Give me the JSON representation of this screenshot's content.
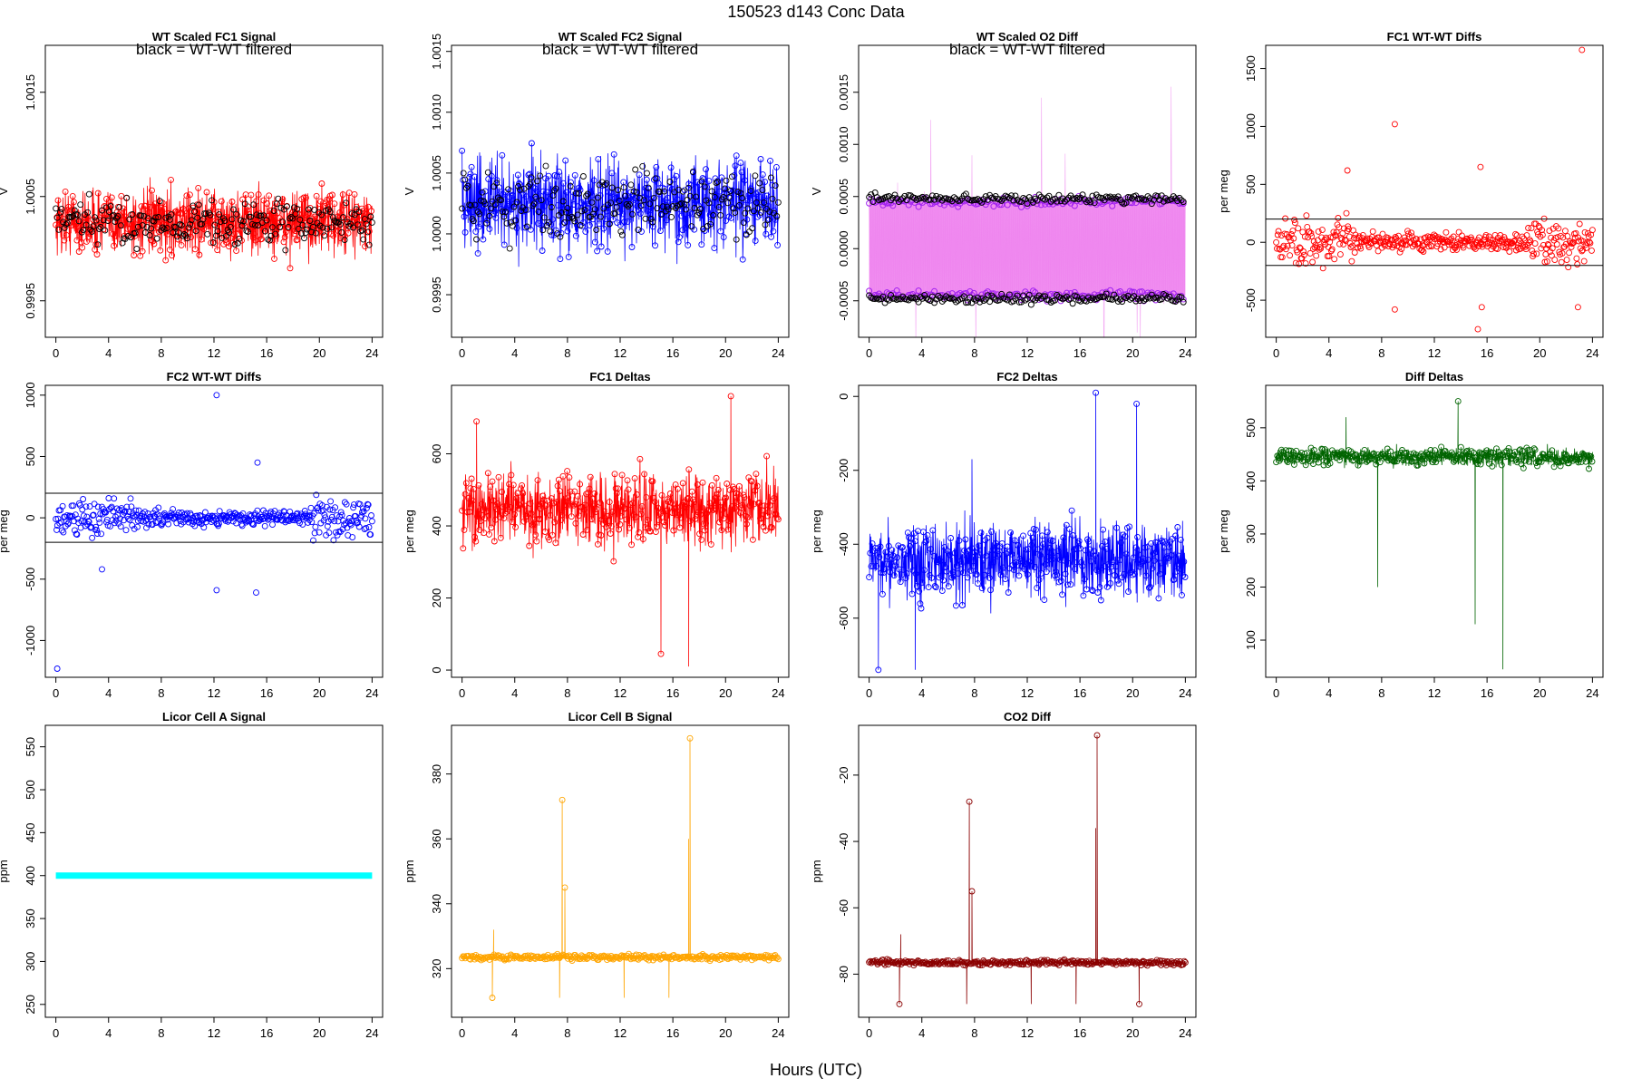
{
  "figure": {
    "title": "150523   d143   Conc Data",
    "xlabel": "Hours (UTC)"
  },
  "chart_data": [
    {
      "type": "line",
      "title": "WT Scaled FC1 Signal",
      "annotation": "black = WT-WT filtered",
      "ylabel": "V",
      "xlim": [
        -0.8,
        24.8
      ],
      "ylim": [
        0.99915,
        1.00195
      ],
      "xticks": [
        0,
        4,
        8,
        12,
        16,
        20,
        24
      ],
      "xtick_labels": [
        "0",
        "4",
        "8",
        "12",
        "16",
        "20",
        "24"
      ],
      "yticks": [
        0.9995,
        1.0005,
        1.0015
      ],
      "ytick_labels": [
        "0.9995",
        "1.0005",
        "1.0015"
      ],
      "series": [
        {
          "color": "#ff0000",
          "kind": "line-points",
          "center": 1.00025,
          "noise": 0.00022
        },
        {
          "color": "#000000",
          "kind": "points",
          "center": 1.00025,
          "noise": 0.00015
        }
      ]
    },
    {
      "type": "line",
      "title": "WT Scaled FC2 Signal",
      "annotation": "black = WT-WT filtered",
      "ylabel": "V",
      "xlim": [
        -0.8,
        24.8
      ],
      "ylim": [
        0.99915,
        1.00155
      ],
      "xticks": [
        0,
        4,
        8,
        12,
        16,
        20,
        24
      ],
      "xtick_labels": [
        "0",
        "4",
        "8",
        "12",
        "16",
        "20",
        "24"
      ],
      "yticks": [
        0.9995,
        1.0,
        1.0005,
        1.001,
        1.0015
      ],
      "ytick_labels": [
        "0.9995",
        "1.0000",
        "1.0005",
        "1.0010",
        "1.0015"
      ],
      "series": [
        {
          "color": "#0000ff",
          "kind": "line-points",
          "center": 1.00025,
          "noise": 0.00025
        },
        {
          "color": "#000000",
          "kind": "points",
          "center": 1.00025,
          "noise": 0.00018
        }
      ]
    },
    {
      "type": "line",
      "title": "WT Scaled O2 Diff",
      "annotation": "black = WT-WT filtered",
      "ylabel": "V",
      "xlim": [
        -0.8,
        24.8
      ],
      "ylim": [
        -0.00085,
        0.00195
      ],
      "xticks": [
        0,
        4,
        8,
        12,
        16,
        20,
        24
      ],
      "xtick_labels": [
        "0",
        "4",
        "8",
        "12",
        "16",
        "20",
        "24"
      ],
      "yticks": [
        -0.0005,
        0.0,
        0.0005,
        0.001,
        0.0015
      ],
      "ytick_labels": [
        "-0.0005",
        "0.0000",
        "0.0005",
        "0.0010",
        "0.0015"
      ],
      "series": [
        {
          "color": "#ee82ee",
          "kind": "band",
          "low": -0.00045,
          "high": 0.00045
        },
        {
          "color": "#a020f0",
          "kind": "points",
          "levels": [
            0.00045,
            -0.00045
          ]
        },
        {
          "color": "#000000",
          "kind": "points",
          "levels": [
            0.00048,
            -0.00048
          ]
        }
      ]
    },
    {
      "type": "scatter",
      "title": "FC1 WT-WT Diffs",
      "ylabel": "per meg",
      "xlim": [
        -0.8,
        24.8
      ],
      "ylim": [
        -820,
        1700
      ],
      "xticks": [
        0,
        4,
        8,
        12,
        16,
        20,
        24
      ],
      "xtick_labels": [
        "0",
        "4",
        "8",
        "12",
        "16",
        "20",
        "24"
      ],
      "yticks": [
        -500,
        0,
        500,
        1000,
        1500
      ],
      "ytick_labels": [
        "-500",
        "0",
        "500",
        "1000",
        "1500"
      ],
      "hlines": [
        200,
        -200
      ],
      "series": [
        {
          "color": "#ff0000",
          "kind": "scatter",
          "center": 0,
          "noise": 130,
          "outliers": [
            [
              23.2,
              1660
            ],
            [
              9,
              1020
            ],
            [
              5.4,
              620
            ],
            [
              15.5,
              650
            ],
            [
              15.3,
              -750
            ],
            [
              15.6,
              -560
            ],
            [
              9,
              -580
            ],
            [
              22.9,
              -560
            ]
          ]
        }
      ]
    },
    {
      "type": "scatter",
      "title": "FC2 WT-WT Diffs",
      "ylabel": "per meg",
      "xlim": [
        -0.8,
        24.8
      ],
      "ylim": [
        -1300,
        1080
      ],
      "xticks": [
        0,
        4,
        8,
        12,
        16,
        20,
        24
      ],
      "xtick_labels": [
        "0",
        "4",
        "8",
        "12",
        "16",
        "20",
        "24"
      ],
      "yticks": [
        -1000,
        -500,
        0,
        500,
        1000
      ],
      "ytick_labels": [
        "-1000",
        "-500",
        "0",
        "500",
        "1000"
      ],
      "hlines": [
        200,
        -200
      ],
      "series": [
        {
          "color": "#0000ff",
          "kind": "scatter",
          "center": 0,
          "noise": 110,
          "outliers": [
            [
              12.2,
              1000
            ],
            [
              0.1,
              -1230
            ],
            [
              12.2,
              -590
            ],
            [
              15.2,
              -610
            ],
            [
              15.3,
              450
            ],
            [
              3.5,
              -420
            ]
          ]
        }
      ]
    },
    {
      "type": "line",
      "title": "FC1 Deltas",
      "ylabel": "per meg",
      "xlim": [
        -0.8,
        24.8
      ],
      "ylim": [
        -20,
        790
      ],
      "xticks": [
        0,
        4,
        8,
        12,
        16,
        20,
        24
      ],
      "xtick_labels": [
        "0",
        "4",
        "8",
        "12",
        "16",
        "20",
        "24"
      ],
      "yticks": [
        0,
        200,
        400,
        600
      ],
      "ytick_labels": [
        "0",
        "200",
        "400",
        "600"
      ],
      "series": [
        {
          "color": "#ff0000",
          "kind": "line-points",
          "center": 445,
          "noise": 70,
          "outliers": [
            [
              15.1,
              45
            ],
            [
              17.2,
              10
            ],
            [
              20.4,
              760
            ],
            [
              1.1,
              690
            ]
          ]
        }
      ]
    },
    {
      "type": "line",
      "title": "FC2 Deltas",
      "ylabel": "per meg",
      "xlim": [
        -0.8,
        24.8
      ],
      "ylim": [
        -760,
        30
      ],
      "xticks": [
        0,
        4,
        8,
        12,
        16,
        20,
        24
      ],
      "xtick_labels": [
        "0",
        "4",
        "8",
        "12",
        "16",
        "20",
        "24"
      ],
      "yticks": [
        -600,
        -400,
        -200,
        0
      ],
      "ytick_labels": [
        "-600",
        "-400",
        "-200",
        "0"
      ],
      "series": [
        {
          "color": "#0000ff",
          "kind": "line-points",
          "center": -440,
          "noise": 70,
          "outliers": [
            [
              17.2,
              10
            ],
            [
              20.3,
              -20
            ],
            [
              0.7,
              -740
            ],
            [
              3.5,
              -740
            ],
            [
              7.8,
              -170
            ]
          ]
        }
      ]
    },
    {
      "type": "line",
      "title": "Diff Deltas",
      "ylabel": "per meg",
      "xlim": [
        -0.8,
        24.8
      ],
      "ylim": [
        30,
        580
      ],
      "xticks": [
        0,
        4,
        8,
        12,
        16,
        20,
        24
      ],
      "xtick_labels": [
        "0",
        "4",
        "8",
        "12",
        "16",
        "20",
        "24"
      ],
      "yticks": [
        100,
        200,
        300,
        400,
        500
      ],
      "ytick_labels": [
        "100",
        "200",
        "300",
        "400",
        "500"
      ],
      "series": [
        {
          "color": "#006400",
          "kind": "line-points",
          "center": 445,
          "noise": 12,
          "outliers": [
            [
              7.7,
              200
            ],
            [
              15.1,
              130
            ],
            [
              17.2,
              45
            ],
            [
              13.8,
              550
            ],
            [
              5.3,
              520
            ]
          ]
        }
      ]
    },
    {
      "type": "line",
      "title": "Licor Cell A Signal",
      "ylabel": "ppm",
      "xlim": [
        -0.8,
        24.8
      ],
      "ylim": [
        235,
        575
      ],
      "xticks": [
        0,
        4,
        8,
        12,
        16,
        20,
        24
      ],
      "xtick_labels": [
        "0",
        "4",
        "8",
        "12",
        "16",
        "20",
        "24"
      ],
      "yticks": [
        250,
        300,
        350,
        400,
        450,
        500,
        550
      ],
      "ytick_labels": [
        "250",
        "300",
        "350",
        "400",
        "450",
        "500",
        "550"
      ],
      "series": [
        {
          "color": "#00ffff",
          "kind": "flat",
          "value": 400
        }
      ]
    },
    {
      "type": "line",
      "title": "Licor Cell B Signal",
      "ylabel": "ppm",
      "xlim": [
        -0.8,
        24.8
      ],
      "ylim": [
        305,
        395
      ],
      "xticks": [
        0,
        4,
        8,
        12,
        16,
        20,
        24
      ],
      "xtick_labels": [
        "0",
        "4",
        "8",
        "12",
        "16",
        "20",
        "24"
      ],
      "yticks": [
        320,
        340,
        360,
        380
      ],
      "ytick_labels": [
        "320",
        "340",
        "360",
        "380"
      ],
      "series": [
        {
          "color": "#ffa500",
          "kind": "line-points",
          "center": 323.5,
          "noise": 0.6,
          "outliers": [
            [
              7.6,
              372
            ],
            [
              7.8,
              345
            ],
            [
              17.3,
              391
            ],
            [
              17.2,
              360
            ],
            [
              2.3,
              311
            ],
            [
              7.4,
              311
            ],
            [
              12.3,
              311
            ],
            [
              15.7,
              311
            ],
            [
              20.5,
              324
            ],
            [
              2.4,
              332
            ]
          ]
        }
      ]
    },
    {
      "type": "line",
      "title": "CO2 Diff",
      "ylabel": "ppm",
      "xlim": [
        -0.8,
        24.8
      ],
      "ylim": [
        -93,
        -5
      ],
      "xticks": [
        0,
        4,
        8,
        12,
        16,
        20,
        24
      ],
      "xtick_labels": [
        "0",
        "4",
        "8",
        "12",
        "16",
        "20",
        "24"
      ],
      "yticks": [
        -80,
        -60,
        -40,
        -20
      ],
      "ytick_labels": [
        "-80",
        "-60",
        "-40",
        "-20"
      ],
      "series": [
        {
          "color": "#8b0000",
          "kind": "line-points",
          "center": -76.5,
          "noise": 0.6,
          "outliers": [
            [
              7.6,
              -28
            ],
            [
              7.8,
              -55
            ],
            [
              17.3,
              -8
            ],
            [
              17.2,
              -36
            ],
            [
              2.3,
              -89
            ],
            [
              7.4,
              -89
            ],
            [
              12.3,
              -89
            ],
            [
              15.7,
              -89
            ],
            [
              20.5,
              -89
            ],
            [
              2.4,
              -68
            ]
          ]
        }
      ]
    }
  ]
}
